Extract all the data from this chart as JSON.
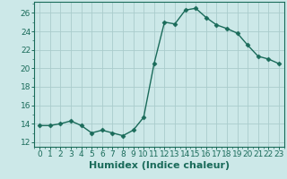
{
  "x": [
    0,
    1,
    2,
    3,
    4,
    5,
    6,
    7,
    8,
    9,
    10,
    11,
    12,
    13,
    14,
    15,
    16,
    17,
    18,
    19,
    20,
    21,
    22,
    23
  ],
  "y": [
    13.8,
    13.8,
    14.0,
    14.3,
    13.8,
    13.0,
    13.3,
    13.0,
    12.7,
    13.3,
    14.7,
    20.5,
    25.0,
    24.8,
    26.3,
    26.5,
    25.5,
    24.7,
    24.3,
    23.8,
    22.5,
    21.3,
    21.0,
    20.5
  ],
  "line_color": "#1a6b5a",
  "bg_color": "#cce8e8",
  "grid_color": "#aacccc",
  "xlabel": "Humidex (Indice chaleur)",
  "xlim": [
    -0.5,
    23.5
  ],
  "ylim": [
    11.5,
    27.2
  ],
  "yticks": [
    12,
    14,
    16,
    18,
    20,
    22,
    24,
    26
  ],
  "xticks": [
    0,
    1,
    2,
    3,
    4,
    5,
    6,
    7,
    8,
    9,
    10,
    11,
    12,
    13,
    14,
    15,
    16,
    17,
    18,
    19,
    20,
    21,
    22,
    23
  ],
  "marker": "D",
  "markersize": 2.5,
  "linewidth": 1.0,
  "xlabel_fontsize": 8,
  "tick_fontsize": 6.5,
  "tick_color": "#1a6b5a",
  "axis_color": "#1a6b5a"
}
